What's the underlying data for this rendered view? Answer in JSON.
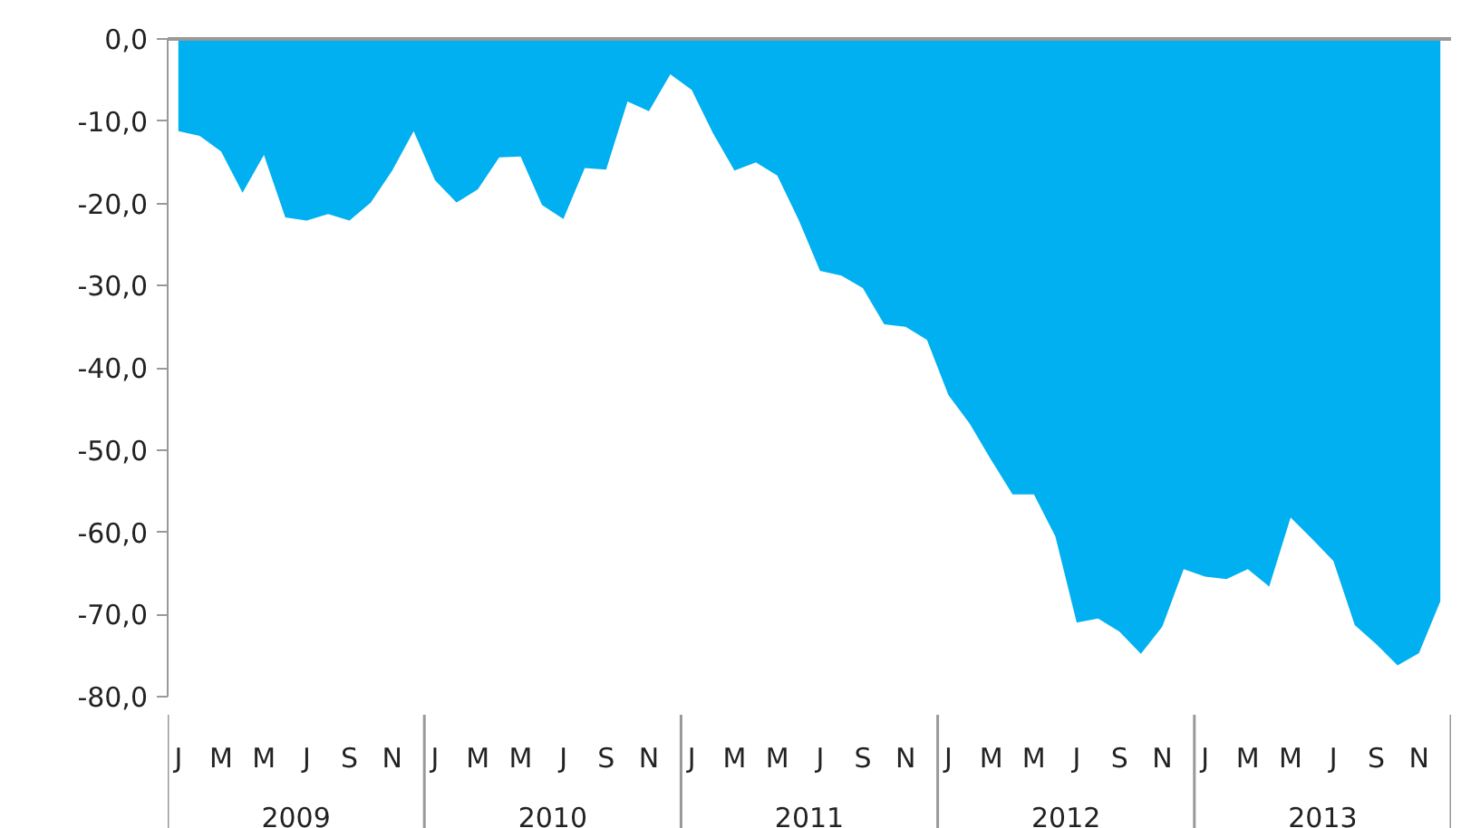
{
  "chart_data": {
    "type": "area",
    "color": "#00b0f0",
    "categories": [
      "J",
      null,
      "M",
      null,
      "M",
      null,
      "J",
      null,
      "S",
      null,
      "N",
      null,
      "J",
      null,
      "M",
      null,
      "M",
      null,
      "J",
      null,
      "S",
      null,
      "N",
      null,
      "J",
      null,
      "M",
      null,
      "M",
      null,
      "J",
      null,
      "S",
      null,
      "N",
      null,
      "J",
      null,
      "M",
      null,
      "M",
      null,
      "J",
      null,
      "S",
      null,
      "N",
      null,
      "J",
      null,
      "M",
      null,
      "M",
      null,
      "J",
      null,
      "S",
      null,
      "N",
      null
    ],
    "values": [
      -11.2,
      -11.8,
      -13.7,
      -18.7,
      -14.1,
      -21.7,
      -22.1,
      -21.3,
      -22.1,
      -19.9,
      -16.0,
      -11.2,
      -17.2,
      -19.9,
      -18.3,
      -14.4,
      -14.3,
      -20.2,
      -21.9,
      -15.7,
      -15.9,
      -7.6,
      -8.8,
      -4.3,
      -6.2,
      -11.5,
      -16.0,
      -15.0,
      -16.6,
      -22.0,
      -28.2,
      -28.8,
      -30.3,
      -34.7,
      -35.0,
      -36.6,
      -43.3,
      -46.8,
      -51.2,
      -55.4,
      -55.4,
      -60.5,
      -71.0,
      -70.5,
      -72.1,
      -74.8,
      -71.5,
      -64.5,
      -65.4,
      -65.7,
      -64.5,
      -66.6,
      -58.2,
      -60.8,
      -63.5,
      -71.3,
      -73.6,
      -76.2,
      -74.7,
      -68.4
    ],
    "annotations": [
      "2009",
      "2010",
      "2011",
      "2012",
      "2013"
    ],
    "ylim": [
      -80,
      0
    ],
    "yticks": [
      {
        "value": 0,
        "label": "0,0"
      },
      {
        "value": -10,
        "label": "-10,0"
      },
      {
        "value": -20,
        "label": "-20,0"
      },
      {
        "value": -30,
        "label": "-30,0"
      },
      {
        "value": -40,
        "label": "-40,0"
      },
      {
        "value": -50,
        "label": "-50,0"
      },
      {
        "value": -60,
        "label": "-60,0"
      },
      {
        "value": -70,
        "label": "-70,0"
      },
      {
        "value": -80,
        "label": "-80,0"
      }
    ],
    "grid": false,
    "legend": false
  }
}
